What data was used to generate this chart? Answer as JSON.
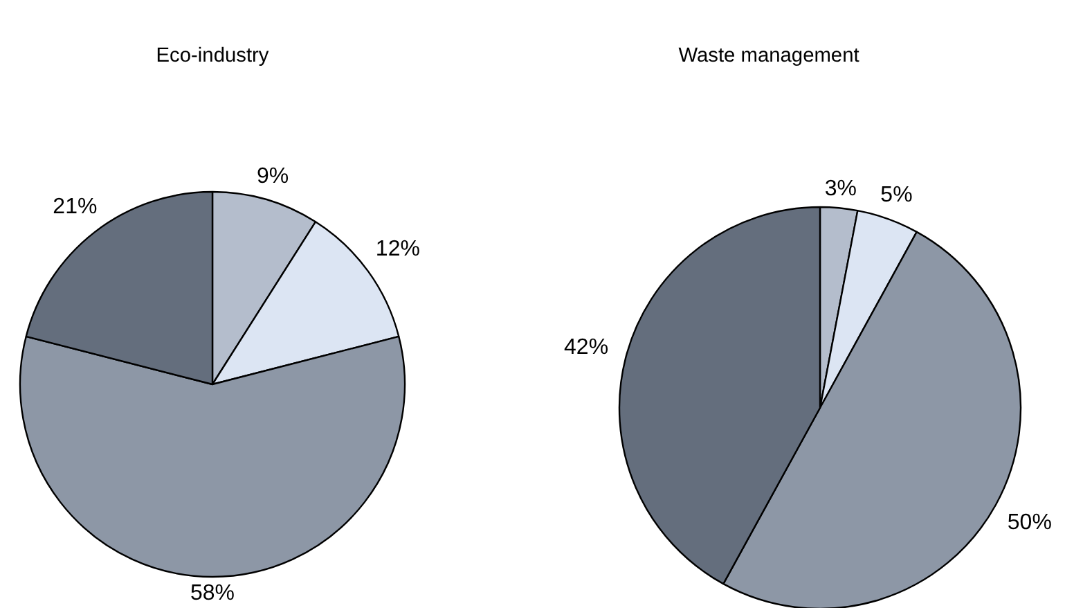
{
  "chart_data": [
    {
      "type": "pie",
      "title": "Eco-industry",
      "categories": [
        null,
        null,
        null,
        null
      ],
      "values": [
        9,
        12,
        58,
        21
      ],
      "colors": [
        "#b4bdcc",
        "#dce5f3",
        "#8d97a6",
        "#646e7d"
      ],
      "value_labels": [
        "9%",
        "12%",
        "58%",
        "21%"
      ]
    },
    {
      "type": "pie",
      "title": "Waste management",
      "categories": [
        null,
        null,
        null,
        null
      ],
      "values": [
        3,
        5,
        50,
        42
      ],
      "colors": [
        "#b4bdcc",
        "#dce5f3",
        "#8d97a6",
        "#646e7d"
      ],
      "value_labels": [
        "3%",
        "5%",
        "50%",
        "42%"
      ]
    }
  ]
}
